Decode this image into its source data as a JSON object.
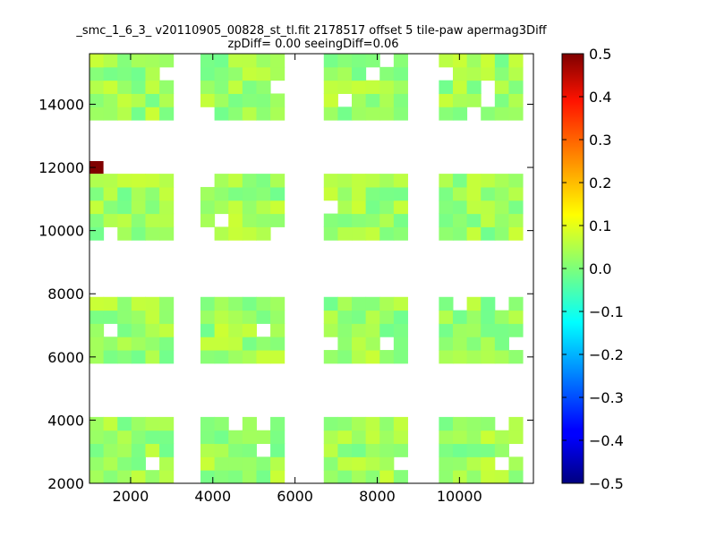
{
  "chart_data": {
    "type": "heatmap",
    "title": "_smc_1_6_3_ v20110905_00828_st_tl.fit 2178517 offset 5 tile-paw apermag3Diff",
    "subtitle": "zpDiff= 0.00 seeingDiff=0.06",
    "xlabel": "",
    "ylabel": "",
    "xlim": [
      1000,
      11800
    ],
    "ylim": [
      2000,
      15600
    ],
    "x_ticks": [
      "2000",
      "4000",
      "6000",
      "8000",
      "10000"
    ],
    "y_ticks": [
      "2000",
      "4000",
      "6000",
      "8000",
      "10000",
      "12000",
      "14000"
    ],
    "colorbar": {
      "colormap": "jet",
      "range": [
        -0.5,
        0.5
      ],
      "ticks": [
        "−0.5",
        "−0.4",
        "−0.3",
        "−0.2",
        "−0.1",
        "0.0",
        "0.1",
        "0.2",
        "0.3",
        "0.4",
        "0.5"
      ]
    },
    "cell_size": [
      340,
      420
    ],
    "x_origin": 1000,
    "y_origin": 2000,
    "grid": false,
    "rows": [
      "..................................",
      "99999.....99999...99999.9...999999",
      "9939.....999999.....9999.....39999",
      "2300.....939999....9999..9..899999",
      "...............................",
      "...............................",
      "...............................",
      "0...................................",
      "................................"
    ]
  }
}
